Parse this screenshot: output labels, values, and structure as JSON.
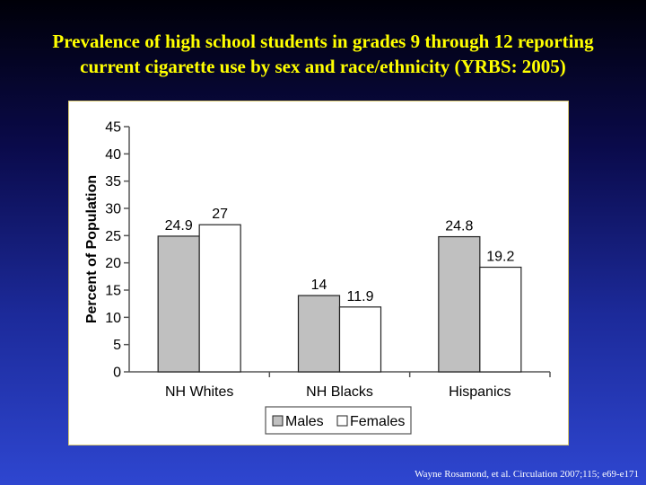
{
  "slide": {
    "title_line1": "Prevalence of high school students in grades 9 through 12 reporting",
    "title_line2": "current cigarette use by sex and race/ethnicity (YRBS: 2005)",
    "citation": "Wayne Rosamond, et al. Circulation  2007;115; e69-e171"
  },
  "colors": {
    "title": "#ffff00",
    "males": "#c0c0c0",
    "females": "#ffffff",
    "panel_border": "#d8c870"
  },
  "chart_data": {
    "type": "bar",
    "categories": [
      "NH Whites",
      "NH Blacks",
      "Hispanics"
    ],
    "series": [
      {
        "name": "Males",
        "values": [
          24.9,
          14,
          24.8
        ],
        "labels": [
          "24.9",
          "14",
          "24.8"
        ]
      },
      {
        "name": "Females",
        "values": [
          27,
          11.9,
          19.2
        ],
        "labels": [
          "27",
          "11.9",
          "19.2"
        ]
      }
    ],
    "ylabel": "Percent of Population",
    "xlabel": "",
    "ylim": [
      0,
      45
    ],
    "yticks": [
      0,
      5,
      10,
      15,
      20,
      25,
      30,
      35,
      40,
      45
    ],
    "legend_position": "bottom",
    "grid": false
  }
}
